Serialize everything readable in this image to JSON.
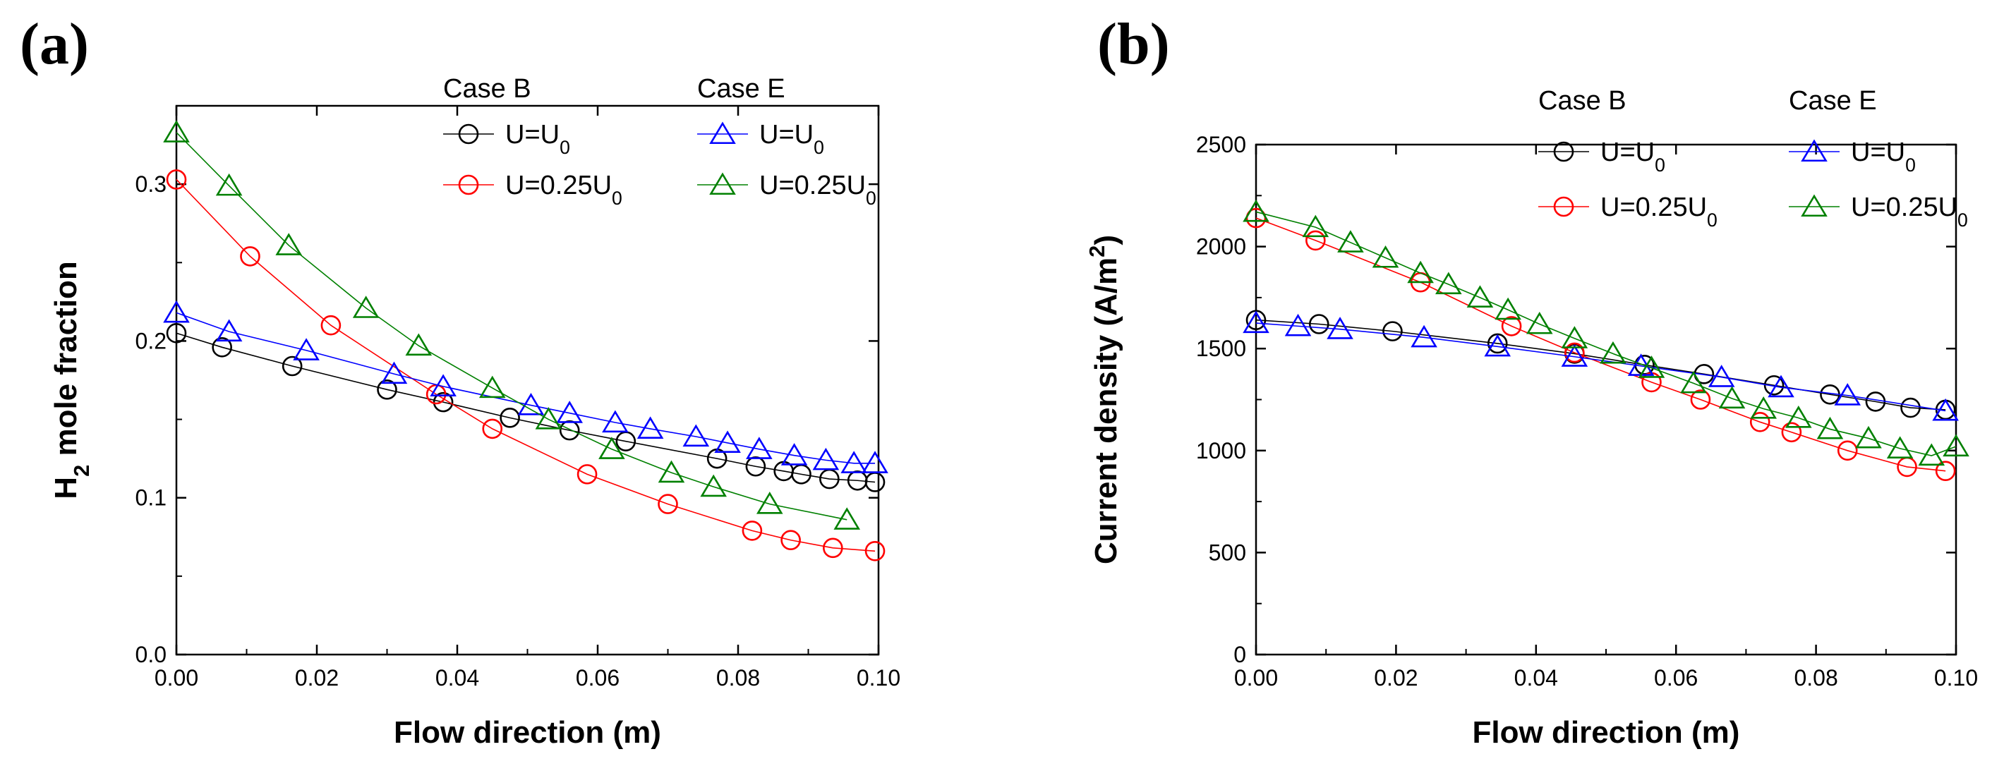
{
  "chart_data": [
    {
      "panel": "(a)",
      "type": "line",
      "xlabel": "Flow direction (m)",
      "ylabel": {
        "pre": "H",
        "sub": "2",
        "post": " mole fraction"
      },
      "xlim": [
        0,
        0.1
      ],
      "ylim": [
        0,
        0.35
      ],
      "xticks": [
        0.0,
        0.02,
        0.04,
        0.06,
        0.08,
        0.1
      ],
      "xticklabels": [
        "0.00",
        "0.02",
        "0.04",
        "0.06",
        "0.08",
        "0.10"
      ],
      "yticks": [
        0.0,
        0.1,
        0.2,
        0.3
      ],
      "yticklabels": [
        "0.0",
        "0.1",
        "0.2",
        "0.3"
      ],
      "legend_groups": [
        {
          "title": "Case B",
          "items": [
            0,
            1
          ]
        },
        {
          "title": "Case E",
          "items": [
            2,
            3
          ]
        }
      ],
      "series": [
        {
          "id": "a-case-b-u0",
          "case": "Case B",
          "label": {
            "pre": "U=U",
            "sub": "0"
          },
          "color": "#000000",
          "marker": "circle",
          "x": [
            0,
            0.0065,
            0.0165,
            0.03,
            0.038,
            0.0475,
            0.056,
            0.064,
            0.077,
            0.0825,
            0.0865,
            0.089,
            0.093,
            0.097,
            0.0995
          ],
          "y": [
            0.205,
            0.196,
            0.184,
            0.169,
            0.161,
            0.151,
            0.143,
            0.136,
            0.125,
            0.12,
            0.117,
            0.115,
            0.112,
            0.111,
            0.11
          ]
        },
        {
          "id": "a-case-b-u025",
          "case": "Case B",
          "label": {
            "pre": "U=0.25U",
            "sub": "0"
          },
          "color": "#ff0000",
          "marker": "circle",
          "x": [
            0,
            0.0105,
            0.022,
            0.037,
            0.045,
            0.0585,
            0.07,
            0.082,
            0.0875,
            0.0935,
            0.0995
          ],
          "y": [
            0.303,
            0.254,
            0.21,
            0.166,
            0.144,
            0.115,
            0.096,
            0.079,
            0.073,
            0.068,
            0.066
          ]
        },
        {
          "id": "a-case-e-u0",
          "case": "Case E",
          "label": {
            "pre": "U=U",
            "sub": "0"
          },
          "color": "#0000ff",
          "marker": "triangle",
          "x": [
            0,
            0.0075,
            0.0185,
            0.031,
            0.038,
            0.0505,
            0.056,
            0.0625,
            0.0675,
            0.074,
            0.0785,
            0.083,
            0.088,
            0.0925,
            0.0965,
            0.0995
          ],
          "y": [
            0.218,
            0.206,
            0.194,
            0.179,
            0.171,
            0.159,
            0.154,
            0.148,
            0.144,
            0.139,
            0.135,
            0.131,
            0.127,
            0.124,
            0.122,
            0.122
          ]
        },
        {
          "id": "a-case-e-u025",
          "case": "Case E",
          "label": {
            "pre": "U=0.25U",
            "sub": "0"
          },
          "color": "#008000",
          "marker": "triangle",
          "x": [
            0,
            0.0075,
            0.016,
            0.027,
            0.0345,
            0.045,
            0.053,
            0.062,
            0.0705,
            0.0765,
            0.0845,
            0.0955
          ],
          "y": [
            0.333,
            0.299,
            0.261,
            0.221,
            0.197,
            0.17,
            0.15,
            0.131,
            0.116,
            0.107,
            0.096,
            0.086
          ]
        }
      ]
    },
    {
      "panel": "(b)",
      "type": "line",
      "xlabel": "Flow direction (m)",
      "ylabel": {
        "pre": "Current density (A/m",
        "sup": "2",
        "post": ")"
      },
      "xlim": [
        0,
        0.1
      ],
      "ylim": [
        0,
        2500
      ],
      "xticks": [
        0.0,
        0.02,
        0.04,
        0.06,
        0.08,
        0.1
      ],
      "xticklabels": [
        "0.00",
        "0.02",
        "0.04",
        "0.06",
        "0.08",
        "0.10"
      ],
      "yticks": [
        0,
        500,
        1000,
        1500,
        2000,
        2500
      ],
      "yticklabels": [
        "0",
        "500",
        "1000",
        "1500",
        "2000",
        "2500"
      ],
      "legend_groups": [
        {
          "title": "Case B",
          "items": [
            0,
            1
          ]
        },
        {
          "title": "Case E",
          "items": [
            2,
            3
          ]
        }
      ],
      "series": [
        {
          "id": "b-case-b-u0",
          "case": "Case B",
          "label": {
            "pre": "U=U",
            "sub": "0"
          },
          "color": "#000000",
          "marker": "circle",
          "x": [
            0,
            0.009,
            0.0195,
            0.0345,
            0.0455,
            0.0555,
            0.064,
            0.074,
            0.082,
            0.0885,
            0.0935,
            0.0985
          ],
          "y": [
            1640,
            1620,
            1585,
            1525,
            1475,
            1420,
            1375,
            1320,
            1275,
            1240,
            1210,
            1200
          ]
        },
        {
          "id": "b-case-b-u025",
          "case": "Case B",
          "label": {
            "pre": "U=0.25U",
            "sub": "0"
          },
          "color": "#ff0000",
          "marker": "circle",
          "x": [
            0,
            0.0085,
            0.0235,
            0.0365,
            0.0455,
            0.0565,
            0.0635,
            0.072,
            0.0765,
            0.0845,
            0.093,
            0.0985
          ],
          "y": [
            2140,
            2030,
            1825,
            1610,
            1480,
            1335,
            1250,
            1140,
            1090,
            1000,
            920,
            900
          ]
        },
        {
          "id": "b-case-e-u0",
          "case": "Case E",
          "label": {
            "pre": "U=U",
            "sub": "0"
          },
          "color": "#0000ff",
          "marker": "triangle",
          "x": [
            0,
            0.006,
            0.012,
            0.024,
            0.0345,
            0.0455,
            0.055,
            0.0665,
            0.075,
            0.0845,
            0.0985
          ],
          "y": [
            1625,
            1610,
            1595,
            1555,
            1510,
            1460,
            1415,
            1360,
            1310,
            1270,
            1195
          ]
        },
        {
          "id": "b-case-e-u025",
          "case": "Case E",
          "label": {
            "pre": "U=0.25U",
            "sub": "0"
          },
          "color": "#008000",
          "marker": "triangle",
          "x": [
            0,
            0.0085,
            0.0135,
            0.0185,
            0.0235,
            0.0275,
            0.032,
            0.036,
            0.0405,
            0.0455,
            0.051,
            0.0565,
            0.0625,
            0.068,
            0.0725,
            0.0775,
            0.082,
            0.0875,
            0.092,
            0.0965,
            0.1
          ],
          "y": [
            2170,
            2095,
            2020,
            1945,
            1870,
            1815,
            1750,
            1690,
            1620,
            1550,
            1475,
            1405,
            1330,
            1255,
            1205,
            1160,
            1105,
            1060,
            1010,
            975,
            1020
          ]
        }
      ]
    }
  ]
}
